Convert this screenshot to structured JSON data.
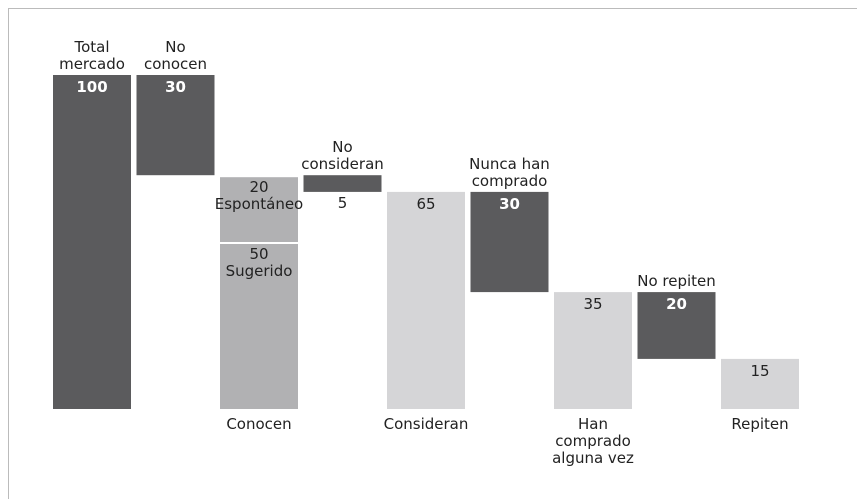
{
  "chart_data": {
    "type": "waterfall",
    "steps": [
      {
        "label": "Total mercado",
        "value": 100,
        "kind": "total",
        "color": "#5b5b5d",
        "label_side": "top"
      },
      {
        "label": "No conocen",
        "value": 30,
        "kind": "decrease",
        "color": "#5b5b5d",
        "label_side": "top"
      },
      {
        "label": "Conocen",
        "kind": "total",
        "label_side": "bottom",
        "color": "#b1b1b3",
        "segments": [
          {
            "name": "Espontáneo",
            "value": 20
          },
          {
            "name": "Sugerido",
            "value": 50
          }
        ]
      },
      {
        "label": "No consideran",
        "value": 5,
        "kind": "decrease",
        "color": "#5b5b5d",
        "label_side": "top"
      },
      {
        "label": "Consideran",
        "value": 65,
        "kind": "total",
        "color": "#d5d5d7",
        "label_side": "bottom"
      },
      {
        "label": "Nunca han comprado",
        "value": 30,
        "kind": "decrease",
        "color": "#5b5b5d",
        "label_side": "top"
      },
      {
        "label": "Han comprado alguna vez",
        "value": 35,
        "kind": "total",
        "color": "#d5d5d7",
        "label_side": "bottom"
      },
      {
        "label": "No repiten",
        "value": 20,
        "kind": "decrease",
        "color": "#5b5b5d",
        "label_side": "top"
      },
      {
        "label": "Repiten",
        "value": 15,
        "kind": "total",
        "color": "#d5d5d7",
        "label_side": "bottom"
      }
    ]
  }
}
